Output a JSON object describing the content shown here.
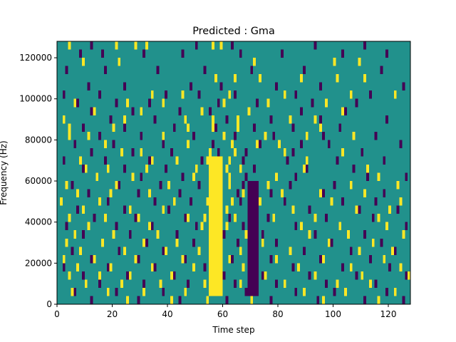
{
  "chart_data": {
    "type": "heatmap",
    "title": "Predicted : Gma",
    "xlabel": "Time step",
    "ylabel": "Frequency (Hz)",
    "xlim": [
      0,
      128
    ],
    "ylim": [
      0,
      128000
    ],
    "xticks": [
      0,
      20,
      40,
      60,
      80,
      100,
      120
    ],
    "yticks": [
      0,
      20000,
      40000,
      60000,
      80000,
      100000,
      120000
    ],
    "grid": false,
    "legend": "none",
    "colors": {
      "background": "#21918c",
      "high": "#fde725",
      "low": "#440154"
    },
    "cell_size": {
      "time_steps": 1,
      "frequency_hz": 4000
    },
    "rows": 32,
    "cols": 128,
    "value_levels": {
      "low": 0,
      "background": 1,
      "high": 2
    },
    "yellow_band": {
      "time_start": 55,
      "time_end": 60,
      "freq_start": 4000,
      "freq_end": 72000
    },
    "purple_band": {
      "time_start": 69,
      "time_end": 73,
      "freq_start": 4000,
      "freq_end": 60000
    },
    "yellow_cells": [
      [
        4,
        124000
      ],
      [
        21,
        124000
      ],
      [
        28,
        124000
      ],
      [
        32,
        124000
      ],
      [
        56,
        124000
      ],
      [
        59,
        124000
      ],
      [
        9,
        116000
      ],
      [
        22,
        116000
      ],
      [
        71,
        116000
      ],
      [
        100,
        116000
      ],
      [
        109,
        116000
      ],
      [
        57,
        108000
      ],
      [
        64,
        108000
      ],
      [
        73,
        108000
      ],
      [
        88,
        108000
      ],
      [
        101,
        108000
      ],
      [
        111,
        108000
      ],
      [
        34,
        100000
      ],
      [
        45,
        100000
      ],
      [
        62,
        100000
      ],
      [
        82,
        100000
      ],
      [
        106,
        100000
      ],
      [
        122,
        100000
      ],
      [
        6,
        96000
      ],
      [
        25,
        96000
      ],
      [
        38,
        96000
      ],
      [
        60,
        96000
      ],
      [
        76,
        96000
      ],
      [
        97,
        96000
      ],
      [
        13,
        92000
      ],
      [
        30,
        92000
      ],
      [
        52,
        92000
      ],
      [
        69,
        92000
      ],
      [
        103,
        92000
      ],
      [
        2,
        88000
      ],
      [
        24,
        88000
      ],
      [
        46,
        88000
      ],
      [
        56,
        88000
      ],
      [
        65,
        88000
      ],
      [
        84,
        88000
      ],
      [
        93,
        88000
      ],
      [
        4,
        84000
      ],
      [
        20,
        84000
      ],
      [
        47,
        84000
      ],
      [
        56,
        84000
      ],
      [
        65,
        84000
      ],
      [
        95,
        84000
      ],
      [
        4,
        80000
      ],
      [
        11,
        80000
      ],
      [
        38,
        80000
      ],
      [
        60,
        80000
      ],
      [
        75,
        80000
      ],
      [
        90,
        80000
      ],
      [
        107,
        80000
      ],
      [
        17,
        76000
      ],
      [
        47,
        76000
      ],
      [
        63,
        76000
      ],
      [
        72,
        76000
      ],
      [
        80,
        76000
      ],
      [
        23,
        72000
      ],
      [
        30,
        72000
      ],
      [
        55,
        72000
      ],
      [
        64,
        72000
      ],
      [
        82,
        72000
      ],
      [
        103,
        72000
      ],
      [
        8,
        68000
      ],
      [
        34,
        68000
      ],
      [
        43,
        68000
      ],
      [
        54,
        68000
      ],
      [
        62,
        68000
      ],
      [
        90,
        68000
      ],
      [
        10,
        64000
      ],
      [
        18,
        64000
      ],
      [
        32,
        64000
      ],
      [
        50,
        64000
      ],
      [
        61,
        64000
      ],
      [
        66,
        64000
      ],
      [
        89,
        64000
      ],
      [
        112,
        64000
      ],
      [
        14,
        60000
      ],
      [
        27,
        60000
      ],
      [
        49,
        60000
      ],
      [
        62,
        60000
      ],
      [
        79,
        60000
      ],
      [
        116,
        60000
      ],
      [
        3,
        56000
      ],
      [
        21,
        56000
      ],
      [
        40,
        56000
      ],
      [
        62,
        56000
      ],
      [
        76,
        56000
      ],
      [
        106,
        56000
      ],
      [
        123,
        56000
      ],
      [
        7,
        52000
      ],
      [
        19,
        52000
      ],
      [
        33,
        52000
      ],
      [
        58,
        52000
      ],
      [
        67,
        52000
      ],
      [
        81,
        52000
      ],
      [
        95,
        52000
      ],
      [
        111,
        52000
      ],
      [
        1,
        48000
      ],
      [
        15,
        48000
      ],
      [
        42,
        48000
      ],
      [
        54,
        48000
      ],
      [
        63,
        48000
      ],
      [
        73,
        48000
      ],
      [
        99,
        48000
      ],
      [
        124,
        48000
      ],
      [
        9,
        44000
      ],
      [
        26,
        44000
      ],
      [
        38,
        44000
      ],
      [
        56,
        44000
      ],
      [
        61,
        44000
      ],
      [
        85,
        44000
      ],
      [
        108,
        44000
      ],
      [
        120,
        44000
      ],
      [
        4,
        40000
      ],
      [
        17,
        40000
      ],
      [
        29,
        40000
      ],
      [
        47,
        40000
      ],
      [
        53,
        40000
      ],
      [
        64,
        40000
      ],
      [
        78,
        40000
      ],
      [
        93,
        40000
      ],
      [
        116,
        40000
      ],
      [
        11,
        36000
      ],
      [
        33,
        36000
      ],
      [
        52,
        36000
      ],
      [
        61,
        36000
      ],
      [
        88,
        36000
      ],
      [
        102,
        36000
      ],
      [
        119,
        36000
      ],
      [
        6,
        32000
      ],
      [
        20,
        32000
      ],
      [
        36,
        32000
      ],
      [
        55,
        32000
      ],
      [
        68,
        32000
      ],
      [
        91,
        32000
      ],
      [
        105,
        32000
      ],
      [
        125,
        32000
      ],
      [
        3,
        28000
      ],
      [
        16,
        28000
      ],
      [
        31,
        28000
      ],
      [
        43,
        28000
      ],
      [
        59,
        28000
      ],
      [
        74,
        28000
      ],
      [
        98,
        28000
      ],
      [
        114,
        28000
      ],
      [
        8,
        24000
      ],
      [
        24,
        24000
      ],
      [
        39,
        24000
      ],
      [
        51,
        24000
      ],
      [
        66,
        24000
      ],
      [
        84,
        24000
      ],
      [
        109,
        24000
      ],
      [
        121,
        24000
      ],
      [
        2,
        20000
      ],
      [
        13,
        20000
      ],
      [
        28,
        20000
      ],
      [
        45,
        20000
      ],
      [
        62,
        20000
      ],
      [
        79,
        20000
      ],
      [
        96,
        20000
      ],
      [
        118,
        20000
      ],
      [
        7,
        16000
      ],
      [
        19,
        16000
      ],
      [
        34,
        16000
      ],
      [
        49,
        16000
      ],
      [
        67,
        16000
      ],
      [
        87,
        16000
      ],
      [
        106,
        16000
      ],
      [
        124,
        16000
      ],
      [
        4,
        12000
      ],
      [
        15,
        12000
      ],
      [
        26,
        12000
      ],
      [
        41,
        12000
      ],
      [
        58,
        12000
      ],
      [
        75,
        12000
      ],
      [
        93,
        12000
      ],
      [
        110,
        12000
      ],
      [
        127,
        12000
      ],
      [
        10,
        8000
      ],
      [
        23,
        8000
      ],
      [
        37,
        8000
      ],
      [
        53,
        8000
      ],
      [
        66,
        8000
      ],
      [
        82,
        8000
      ],
      [
        101,
        8000
      ],
      [
        113,
        8000
      ],
      [
        5,
        4000
      ],
      [
        18,
        4000
      ],
      [
        31,
        4000
      ],
      [
        46,
        4000
      ],
      [
        57,
        4000
      ],
      [
        71,
        4000
      ],
      [
        89,
        4000
      ],
      [
        104,
        4000
      ],
      [
        122,
        4000
      ],
      [
        25,
        0
      ],
      [
        41,
        0
      ],
      [
        54,
        0
      ],
      [
        70,
        0
      ],
      [
        96,
        0
      ],
      [
        116,
        0
      ]
    ],
    "purple_cells": [
      [
        12,
        124000
      ],
      [
        50,
        124000
      ],
      [
        63,
        124000
      ],
      [
        93,
        124000
      ],
      [
        111,
        124000
      ],
      [
        8,
        120000
      ],
      [
        16,
        120000
      ],
      [
        31,
        120000
      ],
      [
        45,
        120000
      ],
      [
        66,
        120000
      ],
      [
        81,
        120000
      ],
      [
        103,
        120000
      ],
      [
        119,
        120000
      ],
      [
        3,
        112000
      ],
      [
        17,
        112000
      ],
      [
        36,
        112000
      ],
      [
        53,
        112000
      ],
      [
        70,
        112000
      ],
      [
        89,
        112000
      ],
      [
        117,
        112000
      ],
      [
        11,
        104000
      ],
      [
        24,
        104000
      ],
      [
        48,
        104000
      ],
      [
        59,
        104000
      ],
      [
        79,
        104000
      ],
      [
        95,
        104000
      ],
      [
        125,
        104000
      ],
      [
        2,
        100000
      ],
      [
        15,
        100000
      ],
      [
        39,
        100000
      ],
      [
        51,
        100000
      ],
      [
        64,
        100000
      ],
      [
        86,
        100000
      ],
      [
        113,
        100000
      ],
      [
        7,
        96000
      ],
      [
        21,
        96000
      ],
      [
        33,
        96000
      ],
      [
        58,
        96000
      ],
      [
        72,
        96000
      ],
      [
        92,
        96000
      ],
      [
        108,
        96000
      ],
      [
        12,
        92000
      ],
      [
        27,
        92000
      ],
      [
        44,
        92000
      ],
      [
        55,
        92000
      ],
      [
        69,
        92000
      ],
      [
        88,
        92000
      ],
      [
        104,
        92000
      ],
      [
        19,
        88000
      ],
      [
        35,
        88000
      ],
      [
        61,
        88000
      ],
      [
        77,
        88000
      ],
      [
        95,
        88000
      ],
      [
        119,
        88000
      ],
      [
        9,
        84000
      ],
      [
        24,
        84000
      ],
      [
        42,
        84000
      ],
      [
        57,
        84000
      ],
      [
        71,
        84000
      ],
      [
        85,
        84000
      ],
      [
        102,
        84000
      ],
      [
        15,
        80000
      ],
      [
        30,
        80000
      ],
      [
        49,
        80000
      ],
      [
        64,
        80000
      ],
      [
        78,
        80000
      ],
      [
        96,
        80000
      ],
      [
        115,
        80000
      ],
      [
        6,
        76000
      ],
      [
        20,
        76000
      ],
      [
        38,
        76000
      ],
      [
        56,
        76000
      ],
      [
        73,
        76000
      ],
      [
        88,
        76000
      ],
      [
        98,
        76000
      ],
      [
        124,
        76000
      ],
      [
        12,
        72000
      ],
      [
        27,
        72000
      ],
      [
        41,
        72000
      ],
      [
        58,
        72000
      ],
      [
        68,
        72000
      ],
      [
        85,
        72000
      ],
      [
        110,
        72000
      ],
      [
        2,
        68000
      ],
      [
        17,
        68000
      ],
      [
        33,
        68000
      ],
      [
        52,
        68000
      ],
      [
        67,
        68000
      ],
      [
        83,
        68000
      ],
      [
        101,
        68000
      ],
      [
        118,
        68000
      ],
      [
        9,
        64000
      ],
      [
        24,
        64000
      ],
      [
        39,
        64000
      ],
      [
        56,
        64000
      ],
      [
        71,
        64000
      ],
      [
        90,
        64000
      ],
      [
        107,
        64000
      ],
      [
        14,
        60000
      ],
      [
        30,
        60000
      ],
      [
        45,
        60000
      ],
      [
        59,
        60000
      ],
      [
        68,
        60000
      ],
      [
        86,
        60000
      ],
      [
        112,
        60000
      ],
      [
        126,
        60000
      ],
      [
        5,
        56000
      ],
      [
        22,
        56000
      ],
      [
        37,
        56000
      ],
      [
        51,
        56000
      ],
      [
        67,
        56000
      ],
      [
        84,
        56000
      ],
      [
        100,
        56000
      ],
      [
        11,
        52000
      ],
      [
        29,
        52000
      ],
      [
        44,
        52000
      ],
      [
        65,
        52000
      ],
      [
        77,
        52000
      ],
      [
        96,
        52000
      ],
      [
        118,
        52000
      ],
      [
        18,
        48000
      ],
      [
        35,
        48000
      ],
      [
        48,
        48000
      ],
      [
        66,
        48000
      ],
      [
        82,
        48000
      ],
      [
        103,
        48000
      ],
      [
        115,
        48000
      ],
      [
        7,
        44000
      ],
      [
        24,
        44000
      ],
      [
        40,
        44000
      ],
      [
        58,
        44000
      ],
      [
        70,
        44000
      ],
      [
        91,
        44000
      ],
      [
        109,
        44000
      ],
      [
        123,
        44000
      ],
      [
        13,
        40000
      ],
      [
        28,
        40000
      ],
      [
        46,
        40000
      ],
      [
        62,
        40000
      ],
      [
        76,
        40000
      ],
      [
        97,
        40000
      ],
      [
        114,
        40000
      ],
      [
        3,
        36000
      ],
      [
        21,
        36000
      ],
      [
        34,
        36000
      ],
      [
        50,
        36000
      ],
      [
        67,
        36000
      ],
      [
        86,
        36000
      ],
      [
        102,
        36000
      ],
      [
        126,
        36000
      ],
      [
        9,
        32000
      ],
      [
        26,
        32000
      ],
      [
        43,
        32000
      ],
      [
        60,
        32000
      ],
      [
        74,
        32000
      ],
      [
        93,
        32000
      ],
      [
        111,
        32000
      ],
      [
        16,
        28000
      ],
      [
        32,
        28000
      ],
      [
        49,
        28000
      ],
      [
        65,
        28000
      ],
      [
        79,
        28000
      ],
      [
        99,
        28000
      ],
      [
        117,
        28000
      ],
      [
        5,
        24000
      ],
      [
        22,
        24000
      ],
      [
        38,
        24000
      ],
      [
        57,
        24000
      ],
      [
        72,
        24000
      ],
      [
        89,
        24000
      ],
      [
        106,
        24000
      ],
      [
        122,
        24000
      ],
      [
        12,
        20000
      ],
      [
        29,
        20000
      ],
      [
        46,
        20000
      ],
      [
        63,
        20000
      ],
      [
        77,
        20000
      ],
      [
        95,
        20000
      ],
      [
        113,
        20000
      ],
      [
        2,
        16000
      ],
      [
        18,
        16000
      ],
      [
        35,
        16000
      ],
      [
        53,
        16000
      ],
      [
        70,
        16000
      ],
      [
        85,
        16000
      ],
      [
        103,
        16000
      ],
      [
        120,
        16000
      ],
      [
        9,
        12000
      ],
      [
        25,
        12000
      ],
      [
        42,
        12000
      ],
      [
        60,
        12000
      ],
      [
        74,
        12000
      ],
      [
        91,
        12000
      ],
      [
        108,
        12000
      ],
      [
        126,
        12000
      ],
      [
        15,
        8000
      ],
      [
        31,
        8000
      ],
      [
        47,
        8000
      ],
      [
        64,
        8000
      ],
      [
        79,
        8000
      ],
      [
        97,
        8000
      ],
      [
        115,
        8000
      ],
      [
        6,
        4000
      ],
      [
        21,
        4000
      ],
      [
        38,
        4000
      ],
      [
        55,
        4000
      ],
      [
        68,
        4000
      ],
      [
        86,
        4000
      ],
      [
        100,
        4000
      ],
      [
        119,
        4000
      ],
      [
        12,
        0
      ],
      [
        29,
        0
      ],
      [
        44,
        0
      ],
      [
        61,
        0
      ],
      [
        77,
        0
      ],
      [
        94,
        0
      ],
      [
        111,
        0
      ],
      [
        125,
        0
      ]
    ]
  }
}
